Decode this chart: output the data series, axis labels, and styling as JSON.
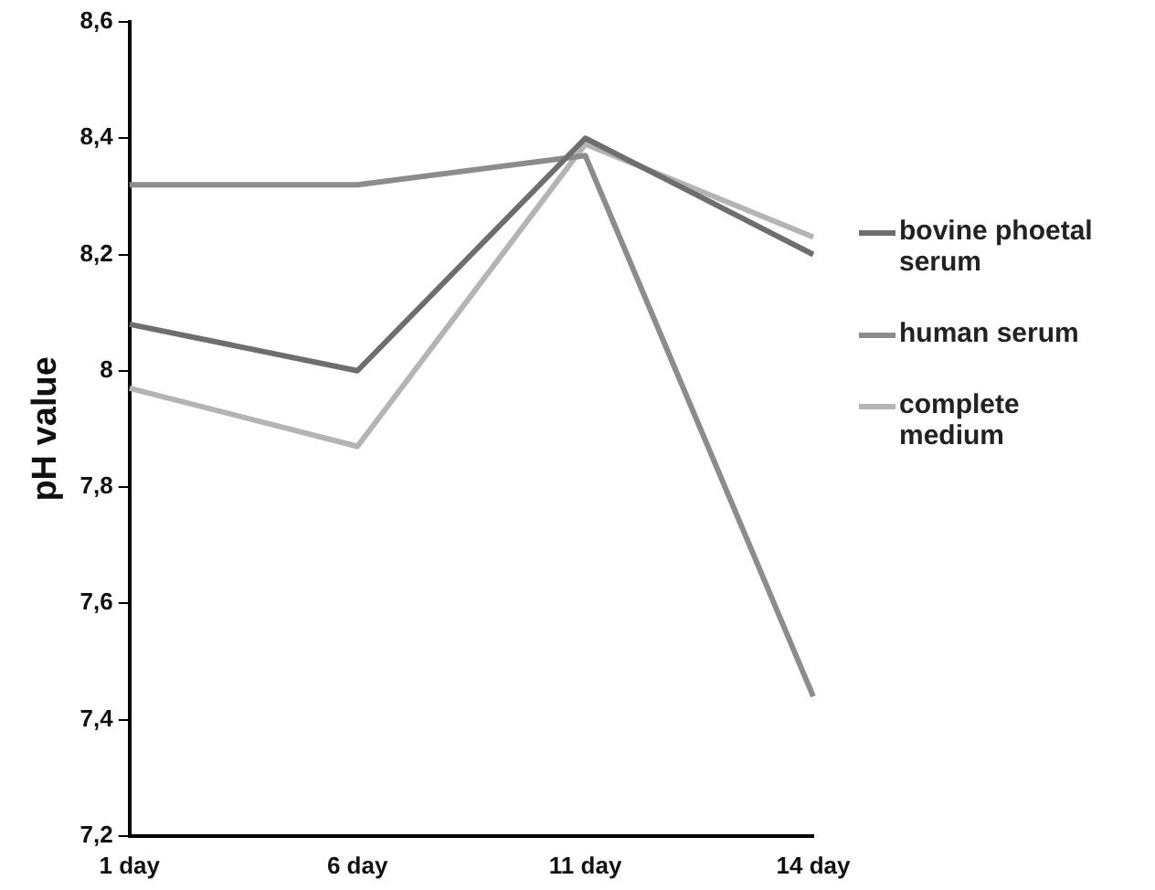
{
  "chart_data": {
    "type": "line",
    "ylabel": "pH value",
    "categories": [
      "1 day",
      "6 day",
      "11 day",
      "14 day"
    ],
    "series": [
      {
        "name": "bovine phoetal serum",
        "color": "#6e6e6e",
        "values": [
          8.08,
          8.0,
          8.4,
          8.2
        ]
      },
      {
        "name": "human serum",
        "color": "#8c8c8c",
        "values": [
          8.32,
          8.32,
          8.37,
          7.44
        ]
      },
      {
        "name": "complete medium",
        "color": "#b4b4b4",
        "values": [
          7.97,
          7.87,
          8.39,
          8.23
        ]
      }
    ],
    "ylim": [
      7.2,
      8.6
    ],
    "yticks": [
      {
        "value": 7.2,
        "label": "7,2"
      },
      {
        "value": 7.4,
        "label": "7,4"
      },
      {
        "value": 7.6,
        "label": "7,6"
      },
      {
        "value": 7.8,
        "label": "7,8"
      },
      {
        "value": 8,
        "label": "8"
      },
      {
        "value": 8.2,
        "label": "8,2"
      },
      {
        "value": 8.4,
        "label": "8,4"
      },
      {
        "value": 8.6,
        "label": "8,6"
      }
    ],
    "grid": false,
    "legend": "right",
    "marker": "none",
    "line_style": "solid"
  }
}
